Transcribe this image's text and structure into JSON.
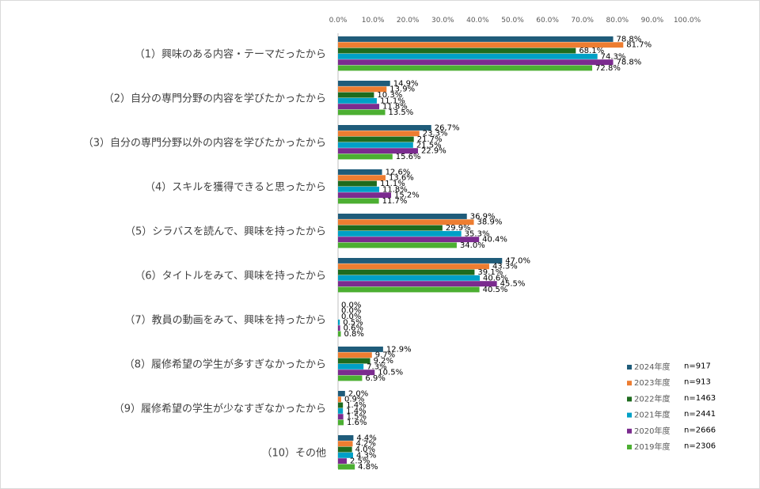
{
  "chart_data": {
    "type": "bar",
    "orientation": "horizontal",
    "xlim": [
      0,
      100
    ],
    "x_ticks": [
      "0.0%",
      "10.0%",
      "20.0%",
      "30.0%",
      "40.0%",
      "50.0%",
      "60.0%",
      "70.0%",
      "80.0%",
      "90.0%",
      "100.0%"
    ],
    "x_axis_position": "top",
    "grid": false,
    "legend_position": "right-bottom",
    "categories": [
      "（1）興味のある内容・テーマだったから",
      "（2）自分の専門分野の内容を学びたかったから",
      "（3）自分の専門分野以外の内容を学びたかったから",
      "（4）スキルを獲得できると思ったから",
      "（5）シラバスを読んで、興味を持ったから",
      "（6）タイトルをみて、興味を持ったから",
      "（7）教員の動画をみて、興味を持ったから",
      "（8）履修希望の学生が多すぎなかったから",
      "（9）履修希望の学生が少なすぎなかったから",
      "（10）その他"
    ],
    "series": [
      {
        "name": "2024年度",
        "n": "n=917",
        "color": "#1f5c7a",
        "values": [
          78.8,
          14.9,
          26.7,
          12.6,
          36.9,
          47.0,
          0.0,
          12.9,
          2.0,
          4.4
        ],
        "labels": [
          "78.8%",
          "14.9%",
          "26.7%",
          "12.6%",
          "36.9%",
          "47.0%",
          "0.0%",
          "12.9%",
          "2.0%",
          "4.4%"
        ]
      },
      {
        "name": "2023年度",
        "n": "n=913",
        "color": "#ed7d31",
        "values": [
          81.7,
          13.9,
          23.3,
          13.6,
          38.9,
          43.3,
          0.0,
          9.7,
          0.9,
          4.2
        ],
        "labels": [
          "81.7%",
          "13.9%",
          "23.3%",
          "13.6%",
          "38.9%",
          "43.3%",
          "0.0%",
          "9.7%",
          "0.9%",
          "4.2%"
        ]
      },
      {
        "name": "2022年度",
        "n": "n=1463",
        "color": "#1e6b1e",
        "values": [
          68.1,
          10.3,
          21.7,
          11.1,
          29.9,
          39.1,
          0.0,
          9.2,
          1.4,
          4.0
        ],
        "labels": [
          "68.1%",
          "10.3%",
          "21.7%",
          "11.1%",
          "29.9%",
          "39.1%",
          "0.0%",
          "9.2%",
          "1.4%",
          "4.0%"
        ]
      },
      {
        "name": "2021年度",
        "n": "n=2441",
        "color": "#00a0c6",
        "values": [
          74.3,
          11.1,
          21.5,
          11.8,
          35.3,
          40.6,
          0.5,
          7.3,
          1.4,
          4.3
        ],
        "labels": [
          "74.3%",
          "11.1%",
          "21.5%",
          "11.8%",
          "35.3%",
          "40.6%",
          "0.5%",
          "7.3%",
          "1.4%",
          "4.3%"
        ]
      },
      {
        "name": "2020年度",
        "n": "n=2666",
        "color": "#7b2b8f",
        "values": [
          78.8,
          11.8,
          22.9,
          15.2,
          40.4,
          45.5,
          0.6,
          10.5,
          1.5,
          2.5
        ],
        "labels": [
          "78.8%",
          "11.8%",
          "22.9%",
          "15.2%",
          "40.4%",
          "45.5%",
          "0.6%",
          "10.5%",
          "1.5%",
          "2.5%"
        ]
      },
      {
        "name": "2019年度",
        "n": "n=2306",
        "color": "#4caf32",
        "values": [
          72.8,
          13.5,
          15.6,
          11.7,
          34.0,
          40.5,
          0.8,
          6.9,
          1.6,
          4.8
        ],
        "labels": [
          "72.8%",
          "13.5%",
          "15.6%",
          "11.7%",
          "34.0%",
          "40.5%",
          "0.8%",
          "6.9%",
          "1.6%",
          "4.8%"
        ]
      }
    ]
  }
}
